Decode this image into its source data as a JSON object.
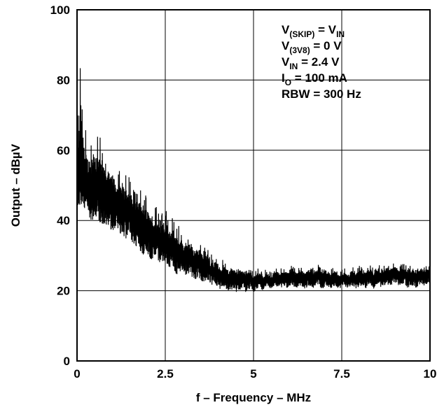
{
  "chart_data": {
    "type": "line",
    "title": "",
    "xlabel": "f – Frequency – MHz",
    "ylabel": "Output – dBµV",
    "xlim": [
      0,
      10
    ],
    "ylim": [
      0,
      100
    ],
    "x_ticks": [
      "0",
      "2.5",
      "5",
      "7.5",
      "10"
    ],
    "y_ticks": [
      "0",
      "20",
      "40",
      "60",
      "80",
      "100"
    ],
    "grid": true,
    "annotations": [
      {
        "main": "V",
        "sub": "(SKIP)",
        "rest": " = V",
        "sub2": "IN"
      },
      {
        "main": "V",
        "sub": "(3V8)",
        "rest": " = 0 V",
        "sub2": ""
      },
      {
        "main": "V",
        "sub": "IN",
        "rest": " = 2.4 V",
        "sub2": ""
      },
      {
        "main": "I",
        "sub": "O",
        "rest": " = 100 mA",
        "sub2": ""
      },
      {
        "main": "RBW = 300 Hz",
        "sub": "",
        "rest": "",
        "sub2": ""
      }
    ],
    "series": [
      {
        "x": [
          0,
          0.1,
          0.2,
          0.3,
          0.4,
          0.5,
          0.6,
          0.7,
          0.8,
          0.9,
          1.0,
          1.2,
          1.4,
          1.6,
          1.8,
          2.0,
          2.2,
          2.5,
          2.8,
          3.0,
          3.2,
          3.5,
          3.8,
          4.0,
          4.3,
          4.6,
          5.0,
          5.5,
          6.0,
          6.5,
          7.0,
          7.5,
          8.0,
          8.5,
          9.0,
          9.5,
          10.0
        ],
        "y": [
          50,
          55,
          52,
          50,
          48,
          50,
          49,
          48,
          46,
          47,
          46,
          44,
          43,
          41,
          39,
          37,
          35,
          34,
          31,
          30,
          29,
          28,
          26,
          25,
          24,
          24,
          23,
          23,
          24,
          24,
          24,
          23,
          24,
          24,
          25,
          24,
          25
        ],
        "max": [
          63,
          90,
          68,
          64,
          66,
          65,
          67,
          62,
          62,
          60,
          57,
          55,
          54,
          50,
          49,
          47,
          44,
          44,
          40,
          37,
          36,
          34,
          31,
          29,
          28,
          27,
          26,
          26,
          27,
          27,
          27,
          26,
          27,
          27,
          28,
          27,
          28
        ],
        "min": [
          42,
          44,
          43,
          42,
          40,
          41,
          40,
          39,
          37,
          38,
          37,
          36,
          35,
          33,
          31,
          30,
          28,
          28,
          25,
          25,
          24,
          23,
          22,
          21,
          20,
          20,
          20,
          21,
          21,
          21,
          21,
          21,
          21,
          21,
          22,
          21,
          22
        ]
      }
    ]
  }
}
